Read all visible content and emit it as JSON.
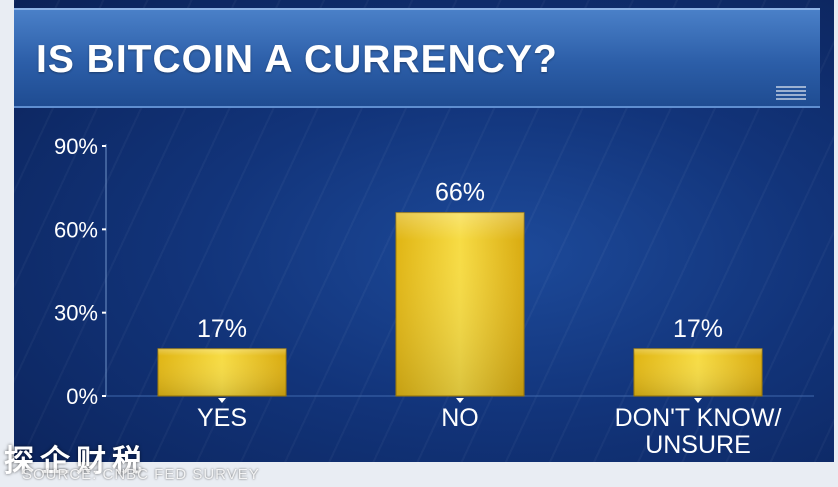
{
  "title": "IS BITCOIN A CURRENCY?",
  "source": "SOURCE: CNBC FED SURVEY",
  "watermark": "探企财税",
  "colors": {
    "bar": "#f2cf2a",
    "background": "#12347a",
    "title_bar": "#2c5ea8",
    "text": "#ffffff"
  },
  "chart_data": {
    "type": "bar",
    "title": "IS BITCOIN A CURRENCY?",
    "categories": [
      "YES",
      "NO",
      "DON'T KNOW/\nUNSURE"
    ],
    "values": [
      17,
      66,
      17
    ],
    "value_labels": [
      "17%",
      "66%",
      "17%"
    ],
    "yticks": [
      0,
      30,
      60,
      90
    ],
    "ytick_labels": [
      "0%",
      "30%",
      "60%",
      "90%"
    ],
    "ylim": [
      0,
      90
    ],
    "xlabel": "",
    "ylabel": "",
    "grid": false,
    "legend": "none"
  }
}
